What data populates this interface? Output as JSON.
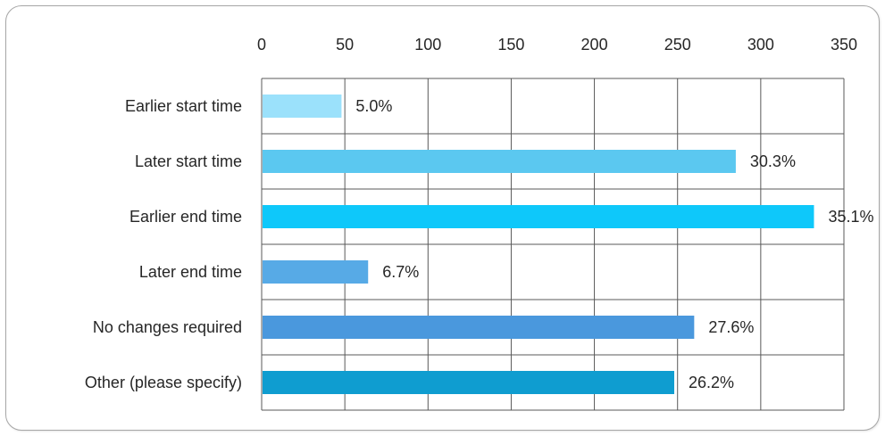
{
  "chart_data": {
    "type": "bar",
    "orientation": "horizontal",
    "categories": [
      "Earlier start time",
      "Later start time",
      "Earlier end time",
      "Later end time",
      "No changes required",
      "Other (please specify)"
    ],
    "values": [
      48,
      285,
      332,
      64,
      260,
      248
    ],
    "data_labels": [
      "5.0%",
      "30.3%",
      "35.1%",
      "6.7%",
      "27.6%",
      "26.2%"
    ],
    "xlim": [
      0,
      350
    ],
    "x_ticks": [
      "0",
      "50",
      "100",
      "150",
      "200",
      "250",
      "300",
      "350"
    ],
    "x_axis_position": "top",
    "grid": true,
    "legend": "none",
    "colors": [
      "#9be1fb",
      "#5bc8f0",
      "#0ec8fa",
      "#57aae6",
      "#4a98dd",
      "#0f9dd0"
    ],
    "gridline_color": "#595959"
  }
}
